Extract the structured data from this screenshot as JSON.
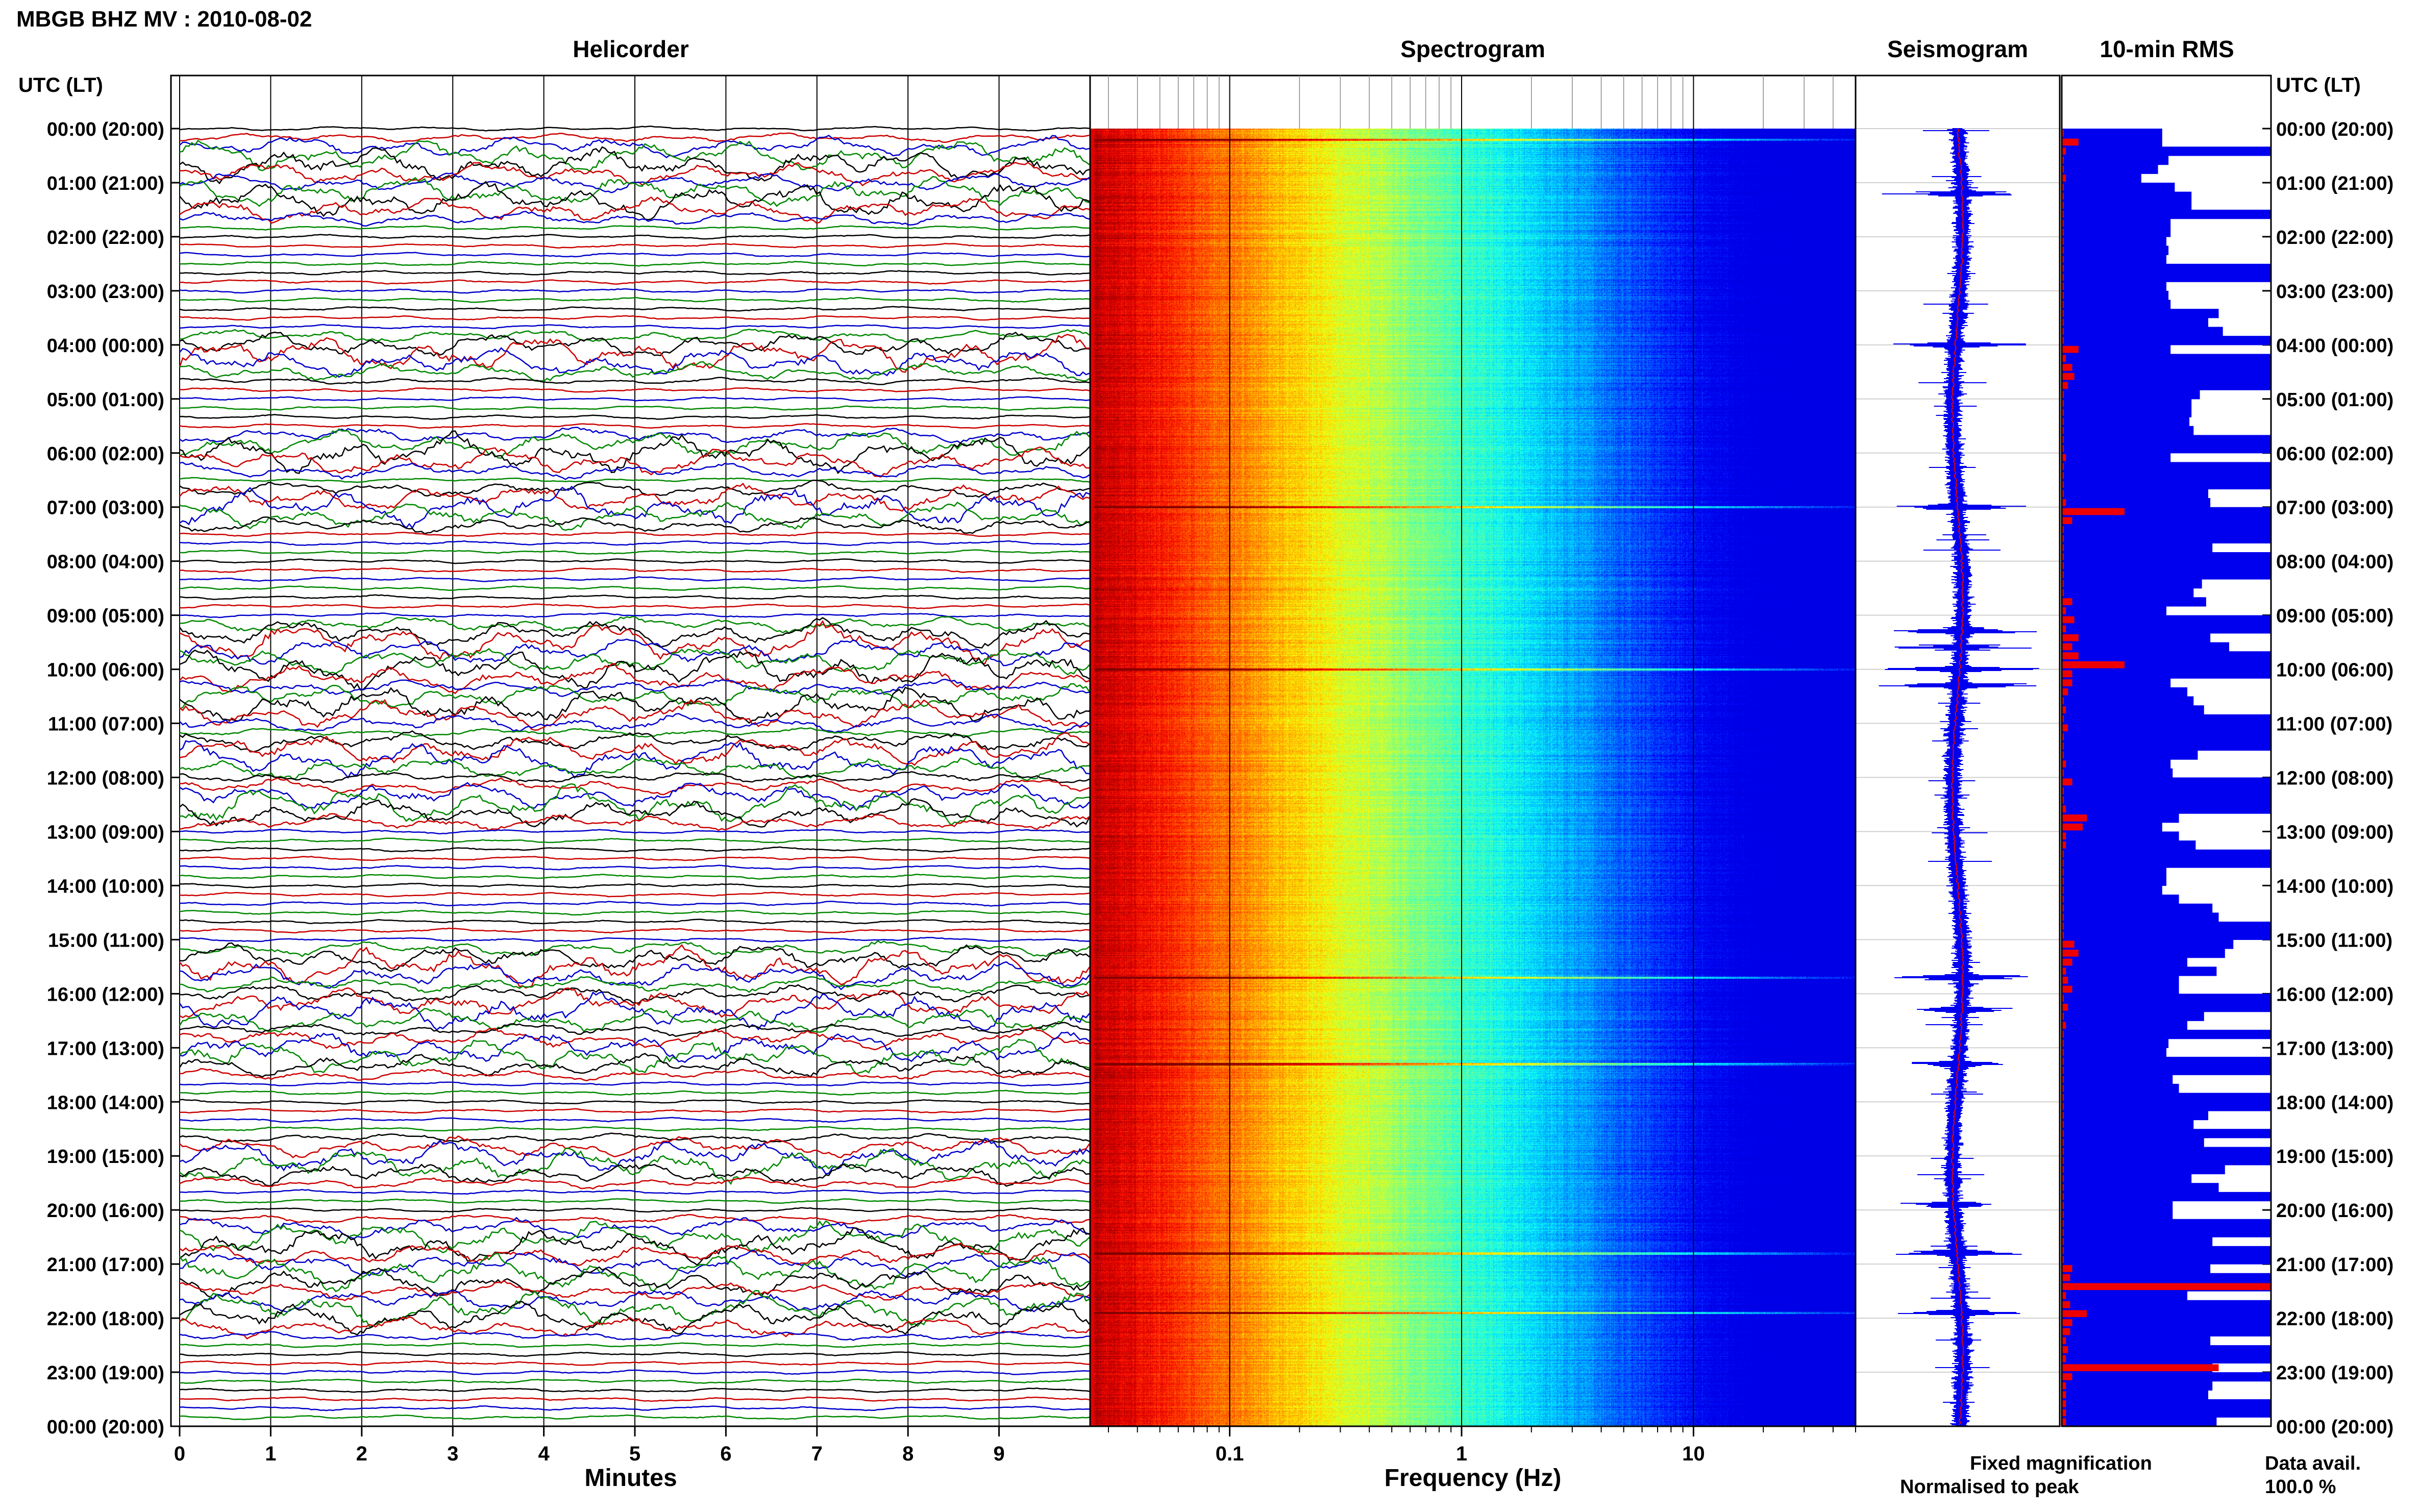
{
  "header": {
    "title": "MBGB BHZ MV : 2010-08-02"
  },
  "time_axis": {
    "label": "UTC (LT)",
    "ticks": [
      "00:00 (20:00)",
      "01:00 (21:00)",
      "02:00 (22:00)",
      "03:00 (23:00)",
      "04:00 (00:00)",
      "05:00 (01:00)",
      "06:00 (02:00)",
      "07:00 (03:00)",
      "08:00 (04:00)",
      "09:00 (05:00)",
      "10:00 (06:00)",
      "11:00 (07:00)",
      "12:00 (08:00)",
      "13:00 (09:00)",
      "14:00 (10:00)",
      "15:00 (11:00)",
      "16:00 (12:00)",
      "17:00 (13:00)",
      "18:00 (14:00)",
      "19:00 (15:00)",
      "20:00 (16:00)",
      "21:00 (17:00)",
      "22:00 (18:00)",
      "23:00 (19:00)",
      "00:00 (20:00)"
    ]
  },
  "panels": {
    "helicorder": {
      "title": "Helicorder",
      "xlabel": "Minutes",
      "xticks": [
        "0",
        "1",
        "2",
        "3",
        "4",
        "5",
        "6",
        "7",
        "8",
        "9"
      ],
      "colors": [
        "#000000",
        "#cc0000",
        "#0000cc",
        "#008800"
      ]
    },
    "spectrogram": {
      "title": "Spectrogram",
      "xlabel": "Frequency (Hz)",
      "xticks": [
        "0.1",
        "1",
        "10"
      ]
    },
    "seismogram": {
      "title": "Seismogram"
    },
    "rms": {
      "title": "10-min RMS"
    }
  },
  "legend": {
    "fixed": "Fixed magnification",
    "fixed_color": "#0000ee",
    "normalised": "Normalised to peak",
    "normalised_color": "#ee0000"
  },
  "availability": {
    "label": "Data avail.",
    "value": "100.0 %"
  },
  "chart_data": [
    {
      "type": "line",
      "panel": "helicorder",
      "rows": 144,
      "row_minutes": 10,
      "xlim": [
        0,
        10
      ],
      "event_hours": [
        0.6,
        1.3,
        4.2,
        6.0,
        7.0,
        9.5,
        10.0,
        10.7,
        11.6,
        12.5,
        15.5,
        16.3,
        17.1,
        19.1,
        20.6,
        21.2,
        21.9
      ]
    },
    {
      "type": "heatmap",
      "panel": "spectrogram",
      "xscale": "log",
      "xlim": [
        0.025,
        50
      ],
      "ylim_hours": [
        0,
        24
      ],
      "bright_bands_hours": [
        0.2,
        7.0,
        10.0,
        15.7,
        17.3,
        20.8,
        21.9
      ]
    },
    {
      "type": "line",
      "panel": "seismogram",
      "ylim_hours": [
        0,
        24
      ],
      "spikes_hours": [
        1.2,
        4.0,
        7.0,
        9.3,
        9.6,
        10.0,
        10.3,
        15.7,
        16.3,
        17.3,
        19.9,
        20.8,
        21.9
      ]
    },
    {
      "type": "bar",
      "panel": "rms",
      "orientation": "horizontal",
      "ylim_hours": [
        0,
        24
      ],
      "bin_minutes": 10,
      "fixed_values": [
        0.48,
        0.48,
        1.0,
        0.51,
        0.46,
        0.38,
        0.54,
        0.62,
        0.62,
        1.0,
        0.52,
        0.52,
        0.5,
        0.51,
        0.5,
        1.0,
        1.0,
        0.5,
        0.51,
        0.52,
        0.75,
        0.7,
        0.77,
        1.0,
        0.52,
        1.0,
        1.0,
        1.0,
        1.0,
        0.66,
        0.62,
        0.62,
        0.61,
        0.63,
        1.0,
        1.0,
        0.52,
        1.0,
        1.0,
        1.0,
        0.7,
        0.71,
        1.0,
        1.0,
        1.0,
        1.0,
        0.72,
        1.0,
        1.0,
        1.0,
        0.67,
        0.63,
        0.69,
        0.5,
        1.0,
        1.0,
        0.71,
        0.8,
        1.0,
        1.0,
        1.0,
        0.52,
        0.6,
        0.63,
        0.68,
        1.0,
        1.0,
        1.0,
        1.0,
        0.65,
        0.52,
        0.53,
        1.0,
        1.0,
        1.0,
        1.0,
        0.56,
        0.48,
        0.56,
        0.64,
        1.0,
        1.0,
        0.5,
        0.5,
        0.48,
        0.56,
        0.72,
        0.75,
        1.0,
        1.0,
        0.82,
        0.78,
        0.6,
        0.74,
        0.56,
        0.56,
        1.0,
        1.0,
        0.68,
        0.6,
        1.0,
        0.51,
        0.5,
        1.0,
        1.0,
        0.53,
        0.56,
        1.0,
        1.0,
        0.7,
        0.63,
        1.0,
        0.68,
        1.0,
        1.0,
        0.78,
        0.62,
        0.75,
        1.0,
        0.53,
        0.53,
        1.0,
        1.0,
        0.72,
        1.0,
        1.0,
        0.71,
        1.0,
        1.0,
        0.6,
        1.0,
        1.0,
        1.0,
        1.0,
        0.71,
        1.0,
        1.0,
        0.72,
        1.0,
        0.72,
        0.7,
        1.0,
        1.0,
        0.74
      ],
      "peak_values": [
        0.01,
        0.08,
        0.02,
        0.01,
        0.01,
        0.02,
        0.01,
        0.01,
        0.01,
        0.01,
        0.01,
        0.01,
        0.01,
        0.01,
        0.01,
        0.01,
        0.01,
        0.01,
        0.01,
        0.01,
        0.01,
        0.01,
        0.01,
        0.01,
        0.08,
        0.02,
        0.05,
        0.06,
        0.03,
        0.01,
        0.01,
        0.01,
        0.01,
        0.01,
        0.01,
        0.01,
        0.02,
        0.01,
        0.01,
        0.01,
        0.01,
        0.02,
        0.3,
        0.05,
        0.01,
        0.01,
        0.01,
        0.01,
        0.01,
        0.01,
        0.01,
        0.01,
        0.05,
        0.02,
        0.06,
        0.02,
        0.08,
        0.05,
        0.08,
        0.3,
        0.05,
        0.05,
        0.03,
        0.01,
        0.02,
        0.01,
        0.03,
        0.01,
        0.01,
        0.01,
        0.02,
        0.01,
        0.05,
        0.01,
        0.01,
        0.02,
        0.12,
        0.1,
        0.02,
        0.02,
        0.01,
        0.01,
        0.01,
        0.01,
        0.01,
        0.01,
        0.01,
        0.01,
        0.01,
        0.01,
        0.06,
        0.08,
        0.05,
        0.02,
        0.03,
        0.05,
        0.01,
        0.03,
        0.01,
        0.02,
        0.01,
        0.01,
        0.01,
        0.01,
        0.01,
        0.01,
        0.01,
        0.01,
        0.01,
        0.01,
        0.01,
        0.01,
        0.01,
        0.01,
        0.01,
        0.01,
        0.01,
        0.01,
        0.01,
        0.01,
        0.01,
        0.01,
        0.01,
        0.01,
        0.01,
        0.01,
        0.05,
        0.04,
        1.0,
        0.02,
        0.04,
        0.12,
        0.05,
        0.04,
        0.02,
        0.03,
        0.02,
        0.75,
        0.05,
        0.02,
        0.02,
        0.02,
        0.02,
        0.02
      ]
    }
  ]
}
